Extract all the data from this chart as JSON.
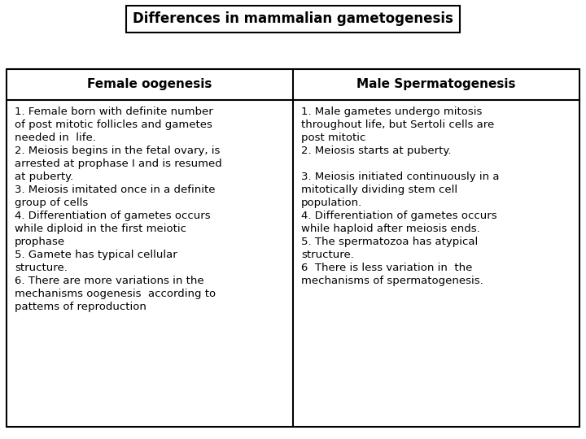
{
  "title": "Differences in mammalian gametogenesis",
  "left_header": "Female oogenesis",
  "right_header": "Male Spermatogenesis",
  "left_points": [
    "1. Female born with definite number\nof post mitotic follicles and gametes\nneeded in  life.",
    "2. Meiosis begins in the fetal ovary, is\narrested at prophase I and is resumed\nat puberty.",
    "3. Meiosis imitated once in a definite\ngroup of cells",
    "4. Differentiation of gametes occurs\nwhile diploid in the first meiotic\nprophase",
    "5. Gamete has typical cellular\nstructure.",
    "6. There are more variations in the\nmechanisms oogenesis  according to\npattems of reproduction"
  ],
  "right_points": [
    "1. Male gametes undergo mitosis\nthroughout life, but Sertoli cells are\npost mitotic",
    "2. Meiosis starts at puberty.\n",
    "3. Meiosis initiated continuously in a\nmitotically dividing stem cell\npopulation.",
    "4. Differentiation of gametes occurs\nwhile haploid after meiosis ends.",
    "5. The spermatozoa has atypical\nstructure.",
    "6  There is less variation in  the\nmechanisms of spermatogenesis."
  ],
  "bg_color": "#ffffff",
  "border_color": "#000000",
  "title_fontsize": 12,
  "header_fontsize": 11,
  "body_fontsize": 9.5,
  "fig_width": 7.2,
  "fig_height": 5.4,
  "dpi": 100
}
